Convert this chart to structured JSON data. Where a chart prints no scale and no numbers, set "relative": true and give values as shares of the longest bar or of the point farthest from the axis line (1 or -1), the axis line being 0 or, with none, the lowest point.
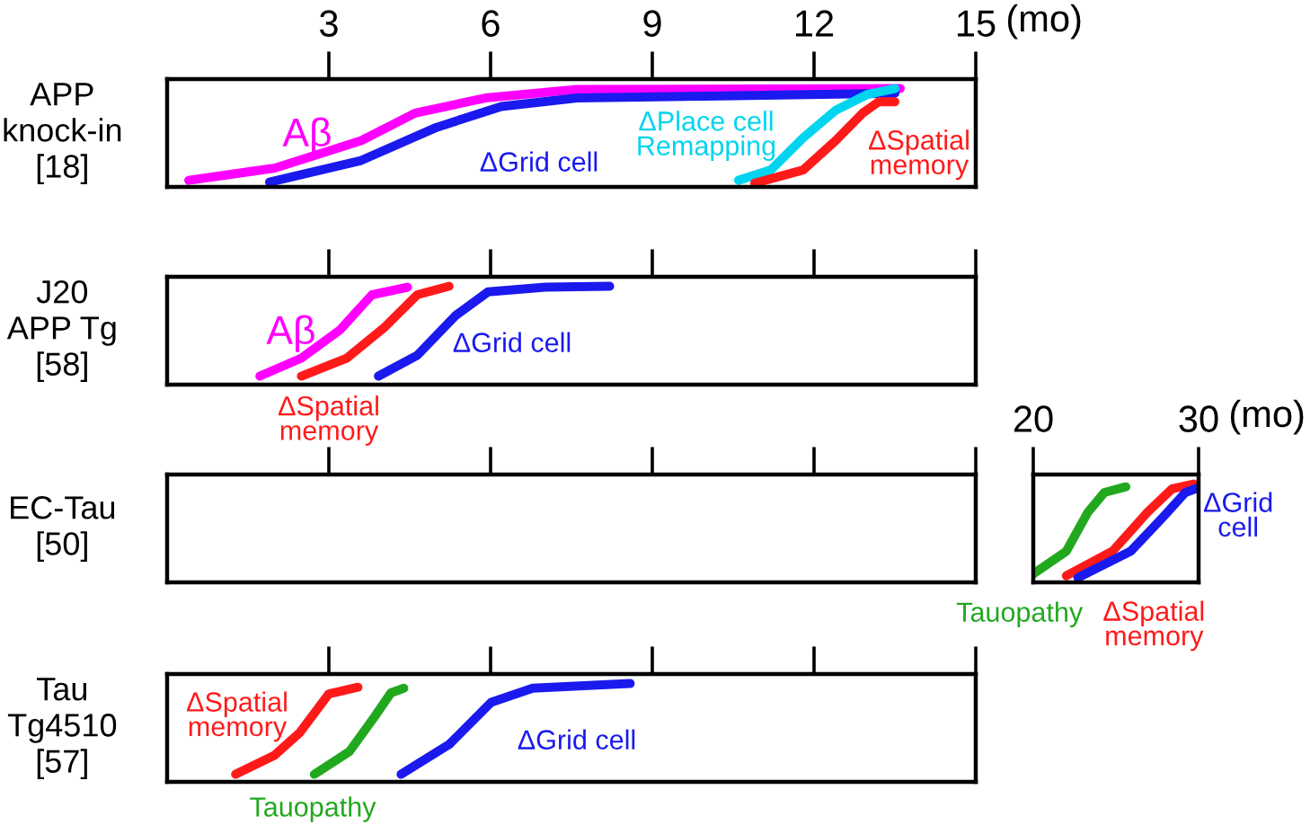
{
  "chart_data": [
    {
      "type": "line",
      "relative": true,
      "ylabel": "APP\nknock-in\n[18]",
      "xlabel": "(mo)",
      "xlim": [
        0,
        15
      ],
      "xticks": [
        3,
        6,
        9,
        12,
        15
      ],
      "tick_labels": "x",
      "series": [
        {
          "name": "Aβ",
          "color": "#ff00ff",
          "x": [
            0.4,
            2.0,
            3.6,
            4.6,
            5.9,
            7.6,
            13.6
          ],
          "values": [
            0.03,
            0.16,
            0.45,
            0.74,
            0.9,
            0.99,
            1.0
          ]
        },
        {
          "name": "ΔGrid cell",
          "color": "#1a1aee",
          "x": [
            1.9,
            3.6,
            5.0,
            6.2,
            7.6,
            10.0,
            13.5
          ],
          "values": [
            0.01,
            0.24,
            0.59,
            0.81,
            0.9,
            0.92,
            0.95
          ]
        },
        {
          "name": "ΔPlace cell\nRemapping",
          "color": "#00d4ee",
          "x": [
            10.6,
            11.2,
            11.8,
            12.4,
            13.0,
            13.5
          ],
          "values": [
            0.03,
            0.14,
            0.48,
            0.77,
            0.94,
            1.0
          ]
        },
        {
          "name": "ΔSpatial\nmemory",
          "color": "#ff1a1a",
          "x": [
            10.9,
            11.8,
            12.4,
            12.9,
            13.2,
            13.5
          ],
          "values": [
            0.0,
            0.14,
            0.45,
            0.74,
            0.86,
            0.86
          ]
        }
      ]
    },
    {
      "type": "line",
      "relative": true,
      "ylabel": "J20\nAPP Tg\n[58]",
      "xlim": [
        0,
        15
      ],
      "xticks": [
        3,
        6,
        9,
        12,
        15
      ],
      "tick_labels": false,
      "series": [
        {
          "name": "Aβ",
          "color": "#ff00ff",
          "x": [
            1.72,
            2.49,
            3.21,
            3.8,
            4.46
          ],
          "values": [
            0.05,
            0.24,
            0.54,
            0.91,
            0.99
          ]
        },
        {
          "name": "ΔSpatial\nmemory",
          "color": "#ff1a1a",
          "x": [
            2.49,
            3.33,
            4.04,
            4.64,
            5.23
          ],
          "values": [
            0.05,
            0.24,
            0.57,
            0.91,
            1.0
          ]
        },
        {
          "name": "ΔGrid cell",
          "color": "#1a1aee",
          "x": [
            3.92,
            4.64,
            5.35,
            5.95,
            7.02,
            8.21
          ],
          "values": [
            0.05,
            0.27,
            0.69,
            0.94,
            0.99,
            1.0
          ]
        }
      ]
    },
    {
      "type": "other",
      "ylabel": "EC-Tau\n[50]"
    },
    {
      "type": "line",
      "relative": true,
      "xlabel": "(mo)",
      "xlim": [
        20,
        30
      ],
      "xticks": [
        20,
        30
      ],
      "tick_labels": "x",
      "series": [
        {
          "name": "Tauopathy",
          "color": "#22a81e",
          "x": [
            20.0,
            22.0,
            23.3,
            24.3,
            25.6
          ],
          "values": [
            0.05,
            0.29,
            0.7,
            0.91,
            0.97
          ]
        },
        {
          "name": "ΔSpatial\nmemory",
          "color": "#ff1a1a",
          "x": [
            22.0,
            24.8,
            26.9,
            28.4,
            29.7
          ],
          "values": [
            0.03,
            0.29,
            0.7,
            0.95,
            1.0
          ]
        },
        {
          "name": "ΔGrid\ncell",
          "color": "#1a1aee",
          "x": [
            22.7,
            25.9,
            27.9,
            29.2,
            30.0
          ],
          "values": [
            0.01,
            0.29,
            0.66,
            0.91,
            0.96
          ]
        }
      ]
    },
    {
      "type": "line",
      "relative": true,
      "ylabel": "Tau\nTg4510\n[57]",
      "xlim": [
        0,
        15
      ],
      "xticks": [
        3,
        6,
        9,
        12,
        15
      ],
      "tick_labels": false,
      "series": [
        {
          "name": "ΔSpatial\nmemory",
          "color": "#ff1a1a",
          "x": [
            1.27,
            1.99,
            2.46,
            3.0,
            3.54
          ],
          "values": [
            0.04,
            0.24,
            0.48,
            0.89,
            0.96
          ]
        },
        {
          "name": "Tauopathy",
          "color": "#22a81e",
          "x": [
            2.73,
            3.38,
            3.85,
            4.15,
            4.39
          ],
          "values": [
            0.04,
            0.28,
            0.65,
            0.9,
            0.95
          ]
        },
        {
          "name": "ΔGrid cell",
          "color": "#1a1aee",
          "x": [
            4.34,
            5.24,
            6.01,
            6.78,
            8.59
          ],
          "values": [
            0.04,
            0.36,
            0.8,
            0.95,
            1.0
          ]
        }
      ]
    }
  ]
}
